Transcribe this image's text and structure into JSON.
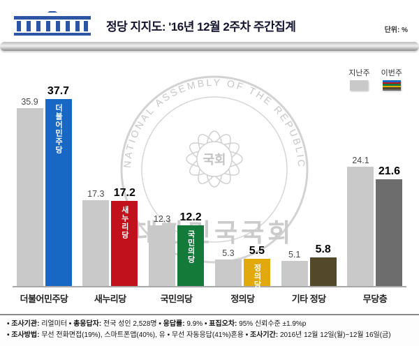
{
  "header": {
    "title": "정당 지지도: '16년 12월 2주차 주간집계",
    "unit_label": "단위: %",
    "logo": "national-assembly-logo"
  },
  "legend": {
    "last_week": "지난주",
    "this_week": "이번주"
  },
  "watermark": {
    "ring_text": "NATIONAL ASSEMBLY OF THE REPUBLIC OF KOREA",
    "center_text": "국회",
    "bottom_text": "대한민국국회"
  },
  "chart_data": {
    "type": "bar",
    "title": "정당 지지도: '16년 12월 2주차 주간집계",
    "unit": "%",
    "categories": [
      "더불어민주당",
      "새누리당",
      "국민의당",
      "정의당",
      "기타 정당",
      "무당층"
    ],
    "series": [
      {
        "name": "지난주",
        "values": [
          35.9,
          17.3,
          12.3,
          5.3,
          5.1,
          24.1
        ],
        "color": "#c9c9c9"
      },
      {
        "name": "이번주",
        "values": [
          37.7,
          17.2,
          12.2,
          5.5,
          5.8,
          21.6
        ],
        "colors": [
          "#1668c4",
          "#c0111c",
          "#147a3a",
          "#e2a90c",
          "#53492a",
          "#6d6d6d"
        ]
      }
    ],
    "bar_labels_in_bar": [
      "더불어민주당",
      "새누리당",
      "국민의당",
      "정의당",
      "",
      ""
    ],
    "ylim": [
      0,
      40
    ],
    "grid": false,
    "legend_position": "top-right"
  },
  "footer": {
    "line1": [
      {
        "label": "조사기관",
        "value": "리얼미터"
      },
      {
        "label": "총응답자",
        "value": "전국 성인 2,528명"
      },
      {
        "label": "응답률",
        "value": "9.9%"
      },
      {
        "label": "표집오차",
        "value": "95% 신뢰수준 ±1.9%p"
      }
    ],
    "line2": [
      {
        "label": "조사방법",
        "value": "무선 전화면접(19%), 스마트폰앱(40%), 유 • 무선 자동응답(41%)혼용"
      },
      {
        "label": "조사기간",
        "value": "2016년 12월 12일(월)~12월 16일(금)"
      }
    ]
  }
}
